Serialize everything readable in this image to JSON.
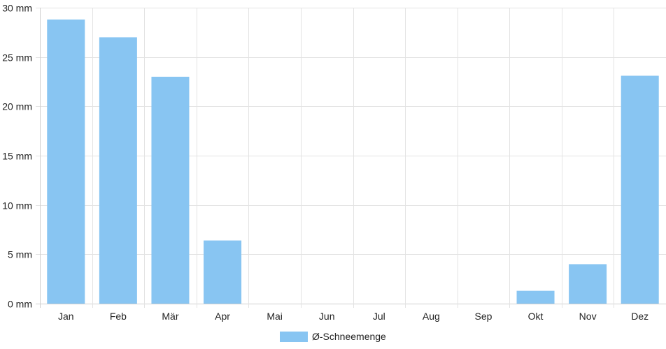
{
  "chart_data": {
    "type": "bar",
    "categories": [
      "Jan",
      "Feb",
      "Mär",
      "Apr",
      "Mai",
      "Jun",
      "Jul",
      "Aug",
      "Sep",
      "Okt",
      "Nov",
      "Dez"
    ],
    "series": [
      {
        "name": "Ø-Schneemenge",
        "values": [
          28.8,
          27.0,
          23.0,
          6.4,
          0,
          0,
          0,
          0,
          0,
          1.3,
          4.0,
          23.1
        ],
        "color": "#88c5f2"
      }
    ],
    "ylim": [
      0,
      30
    ],
    "y_ticks": [
      0,
      5,
      10,
      15,
      20,
      25,
      30
    ],
    "y_unit": "mm",
    "grid": true,
    "legend_position": "bottom-center"
  }
}
